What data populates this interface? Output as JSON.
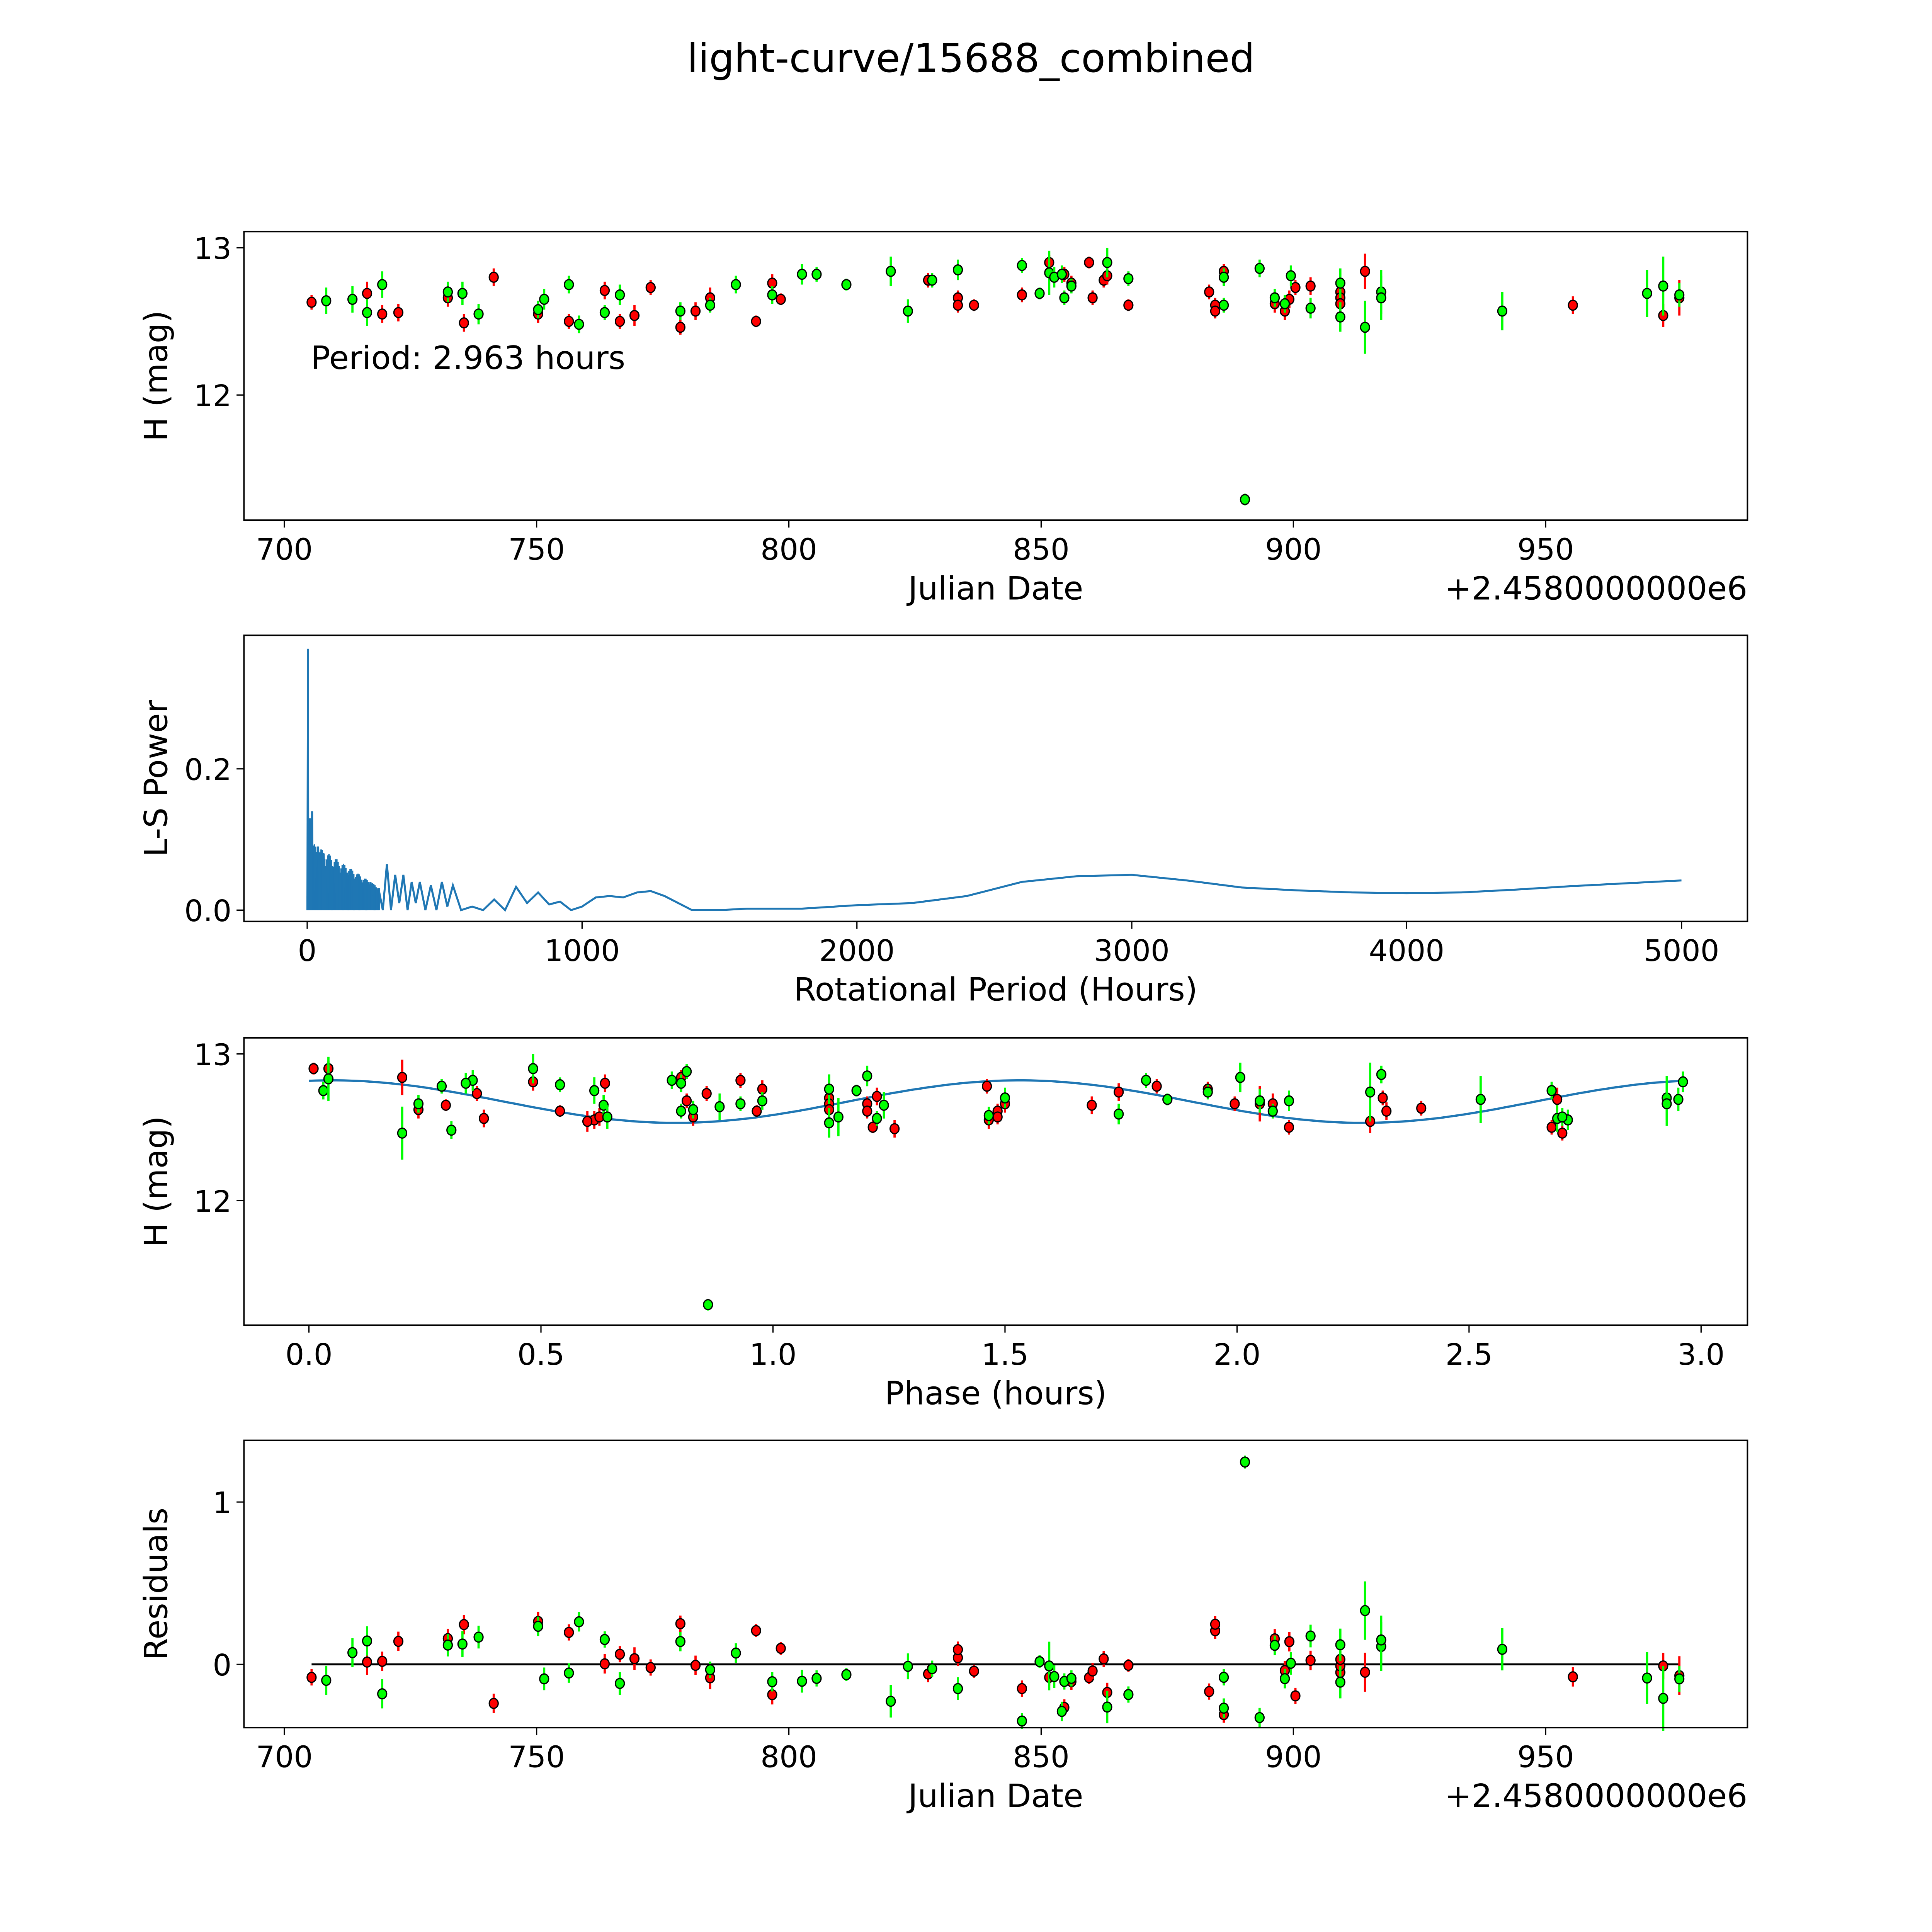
{
  "title": "light-curve/15688_combined",
  "colors": {
    "r": "#ff0000",
    "g": "#00ff00",
    "fit": "#1f77b4",
    "zero_line": "#000000"
  },
  "chart_data": [
    {
      "id": "lightcurve",
      "type": "scatter",
      "xlabel": "Julian Date",
      "ylabel": "H (mag)",
      "offset_label": "+2.4580000000e6",
      "annotation": "Period: 2.963 hours",
      "xlim": [
        692,
        990
      ],
      "ylim": [
        11.15,
        13.11
      ],
      "xticks": [
        700,
        750,
        800,
        850,
        900,
        950
      ],
      "yticks": [
        12,
        13
      ],
      "series": [
        {
          "name": "r",
          "points": [
            [
              705.4,
              12.63,
              0.05
            ],
            [
              716.4,
              12.69,
              0.08
            ],
            [
              719.4,
              12.55,
              0.06
            ],
            [
              722.6,
              12.56,
              0.06
            ],
            [
              732.4,
              12.66,
              0.06
            ],
            [
              735.6,
              12.49,
              0.06
            ],
            [
              741.5,
              12.8,
              0.06
            ],
            [
              750.3,
              12.55,
              0.06
            ],
            [
              756.4,
              12.5,
              0.05
            ],
            [
              763.5,
              12.71,
              0.06
            ],
            [
              766.5,
              12.5,
              0.05
            ],
            [
              769.4,
              12.54,
              0.07
            ],
            [
              772.6,
              12.73,
              0.05
            ],
            [
              778.5,
              12.46,
              0.05
            ],
            [
              781.5,
              12.57,
              0.06
            ],
            [
              784.4,
              12.66,
              0.07
            ],
            [
              793.5,
              12.5,
              0.04
            ],
            [
              796.7,
              12.76,
              0.06
            ],
            [
              798.4,
              12.65,
              0.04
            ],
            [
              827.6,
              12.78,
              0.05
            ],
            [
              833.5,
              12.66,
              0.05
            ],
            [
              833.5,
              12.61,
              0.05
            ],
            [
              836.7,
              12.61,
              0.04
            ],
            [
              846.2,
              12.68,
              0.05
            ],
            [
              851.6,
              12.9,
              0.05
            ],
            [
              854.6,
              12.82,
              0.05
            ],
            [
              856.0,
              12.76,
              0.05
            ],
            [
              859.5,
              12.9,
              0.04
            ],
            [
              860.2,
              12.66,
              0.05
            ],
            [
              862.4,
              12.78,
              0.05
            ],
            [
              863.1,
              12.81,
              0.06
            ],
            [
              867.3,
              12.61,
              0.04
            ],
            [
              883.3,
              12.7,
              0.05
            ],
            [
              884.5,
              12.61,
              0.05
            ],
            [
              884.5,
              12.57,
              0.05
            ],
            [
              886.2,
              12.84,
              0.05
            ],
            [
              896.3,
              12.62,
              0.06
            ],
            [
              898.3,
              12.57,
              0.06
            ],
            [
              899.2,
              12.65,
              0.06
            ],
            [
              900.4,
              12.73,
              0.05
            ],
            [
              903.4,
              12.74,
              0.06
            ],
            [
              909.3,
              12.7,
              0.06
            ],
            [
              909.3,
              12.66,
              0.06
            ],
            [
              909.3,
              12.62,
              0.06
            ],
            [
              914.2,
              12.84,
              0.12
            ],
            [
              955.4,
              12.61,
              0.06
            ],
            [
              973.3,
              12.54,
              0.08
            ],
            [
              976.5,
              12.66,
              0.12
            ]
          ]
        },
        {
          "name": "g",
          "points": [
            [
              708.3,
              12.64,
              0.09
            ],
            [
              713.5,
              12.65,
              0.09
            ],
            [
              716.4,
              12.56,
              0.09
            ],
            [
              719.4,
              12.75,
              0.09
            ],
            [
              732.4,
              12.7,
              0.07
            ],
            [
              735.3,
              12.69,
              0.08
            ],
            [
              738.5,
              12.55,
              0.07
            ],
            [
              750.3,
              12.58,
              0.06
            ],
            [
              751.5,
              12.65,
              0.07
            ],
            [
              756.4,
              12.75,
              0.06
            ],
            [
              758.4,
              12.48,
              0.06
            ],
            [
              763.5,
              12.56,
              0.05
            ],
            [
              766.5,
              12.68,
              0.07
            ],
            [
              778.5,
              12.57,
              0.06
            ],
            [
              784.4,
              12.61,
              0.05
            ],
            [
              789.5,
              12.75,
              0.06
            ],
            [
              796.7,
              12.68,
              0.06
            ],
            [
              802.6,
              12.82,
              0.07
            ],
            [
              805.5,
              12.82,
              0.05
            ],
            [
              811.4,
              12.75,
              0.04
            ],
            [
              820.2,
              12.84,
              0.1
            ],
            [
              823.6,
              12.57,
              0.08
            ],
            [
              828.4,
              12.78,
              0.05
            ],
            [
              833.5,
              12.85,
              0.07
            ],
            [
              846.2,
              12.88,
              0.05
            ],
            [
              849.7,
              12.69,
              0.04
            ],
            [
              851.6,
              12.83,
              0.15
            ],
            [
              852.6,
              12.8,
              0.07
            ],
            [
              854.1,
              12.82,
              0.06
            ],
            [
              854.6,
              12.66,
              0.05
            ],
            [
              856.0,
              12.74,
              0.05
            ],
            [
              863.1,
              12.9,
              0.1
            ],
            [
              867.3,
              12.79,
              0.05
            ],
            [
              886.2,
              12.8,
              0.06
            ],
            [
              886.2,
              12.61,
              0.05
            ],
            [
              890.4,
              11.29,
              0.04
            ],
            [
              893.3,
              12.86,
              0.06
            ],
            [
              896.3,
              12.66,
              0.06
            ],
            [
              898.3,
              12.62,
              0.06
            ],
            [
              899.5,
              12.81,
              0.07
            ],
            [
              903.4,
              12.59,
              0.07
            ],
            [
              909.3,
              12.76,
              0.1
            ],
            [
              909.3,
              12.53,
              0.1
            ],
            [
              914.2,
              12.46,
              0.18
            ],
            [
              917.4,
              12.7,
              0.15
            ],
            [
              917.4,
              12.66,
              0.15
            ],
            [
              941.4,
              12.57,
              0.13
            ],
            [
              970.1,
              12.69,
              0.16
            ],
            [
              973.3,
              12.74,
              0.2
            ],
            [
              976.5,
              12.68,
              0.08
            ]
          ]
        }
      ]
    },
    {
      "id": "periodogram",
      "type": "line",
      "xlabel": "Rotational Period (Hours)",
      "ylabel": "L-S Power",
      "xlim": [
        -230,
        5240
      ],
      "ylim": [
        -0.016,
        0.389
      ],
      "xticks": [
        0,
        1000,
        2000,
        3000,
        4000,
        5000
      ],
      "yticks": [
        0.0,
        0.2
      ],
      "yticklabels": [
        "0.0",
        "0.2"
      ],
      "peak": [
        2.963,
        0.37
      ],
      "x": [
        0.5,
        2.96,
        4,
        6,
        8,
        10,
        12,
        14,
        16,
        18,
        20,
        24,
        28,
        32,
        36,
        40,
        45,
        50,
        55,
        60,
        65,
        70,
        75,
        80,
        90,
        100,
        110,
        120,
        130,
        140,
        150,
        160,
        170,
        180,
        190,
        200,
        215,
        230,
        245,
        260,
        275,
        290,
        305,
        320,
        335,
        350,
        365,
        380,
        395,
        410,
        430,
        450,
        470,
        490,
        510,
        530,
        560,
        600,
        640,
        680,
        720,
        760,
        800,
        840,
        880,
        920,
        960,
        1000,
        1050,
        1100,
        1150,
        1200,
        1250,
        1300,
        1350,
        1400,
        1450,
        1500,
        1600,
        1800,
        2000,
        2200,
        2400,
        2600,
        2800,
        3000,
        3200,
        3400,
        3600,
        3800,
        4000,
        4200,
        4400,
        4600,
        4800,
        5000
      ],
      "y": [
        0.0,
        0.37,
        0.02,
        0.11,
        0.0,
        0.13,
        0.01,
        0.1,
        0.0,
        0.14,
        0.02,
        0.09,
        0.0,
        0.08,
        0.01,
        0.09,
        0.0,
        0.07,
        0.02,
        0.08,
        0.0,
        0.06,
        0.01,
        0.07,
        0.0,
        0.06,
        0.01,
        0.05,
        0.0,
        0.045,
        0.0,
        0.04,
        0.0,
        0.035,
        0.0,
        0.03,
        0.0,
        0.04,
        0.0,
        0.03,
        0.0,
        0.065,
        0.0,
        0.05,
        0.01,
        0.05,
        0.0,
        0.04,
        0.01,
        0.04,
        0.0,
        0.035,
        0.0,
        0.04,
        0.005,
        0.035,
        0.0,
        0.005,
        0.0,
        0.015,
        0.0,
        0.033,
        0.01,
        0.025,
        0.008,
        0.012,
        0.0,
        0.005,
        0.018,
        0.02,
        0.018,
        0.025,
        0.027,
        0.02,
        0.01,
        0.0,
        0.0,
        0.0,
        0.002,
        0.002,
        0.007,
        0.01,
        0.02,
        0.04,
        0.048,
        0.05,
        0.042,
        0.032,
        0.028,
        0.025,
        0.024,
        0.025,
        0.029,
        0.034,
        0.038,
        0.042
      ]
    },
    {
      "id": "phased",
      "type": "scatter",
      "xlabel": "Phase (hours)",
      "ylabel": "H (mag)",
      "xlim": [
        -0.14,
        3.1
      ],
      "ylim": [
        11.15,
        13.11
      ],
      "xticks": [
        0.0,
        0.5,
        1.0,
        1.5,
        2.0,
        2.5,
        3.0
      ],
      "xticklabels": [
        "0.0",
        "0.5",
        "1.0",
        "1.5",
        "2.0",
        "2.5",
        "3.0"
      ],
      "yticks": [
        12,
        13
      ],
      "period_hours": 2.963,
      "fit": {
        "mean": 12.675,
        "amplitude": 0.145,
        "harmonic": 2,
        "phase_peak": 0.05
      },
      "outlier_phase": 0.86
    },
    {
      "id": "residuals",
      "type": "scatter",
      "xlabel": "Julian Date",
      "ylabel": "Residuals",
      "offset_label": "+2.4580000000e6",
      "xlim": [
        692,
        990
      ],
      "ylim": [
        -0.39,
        1.38
      ],
      "xticks": [
        700,
        750,
        800,
        850,
        900,
        950
      ],
      "yticks": [
        0,
        1
      ]
    }
  ]
}
